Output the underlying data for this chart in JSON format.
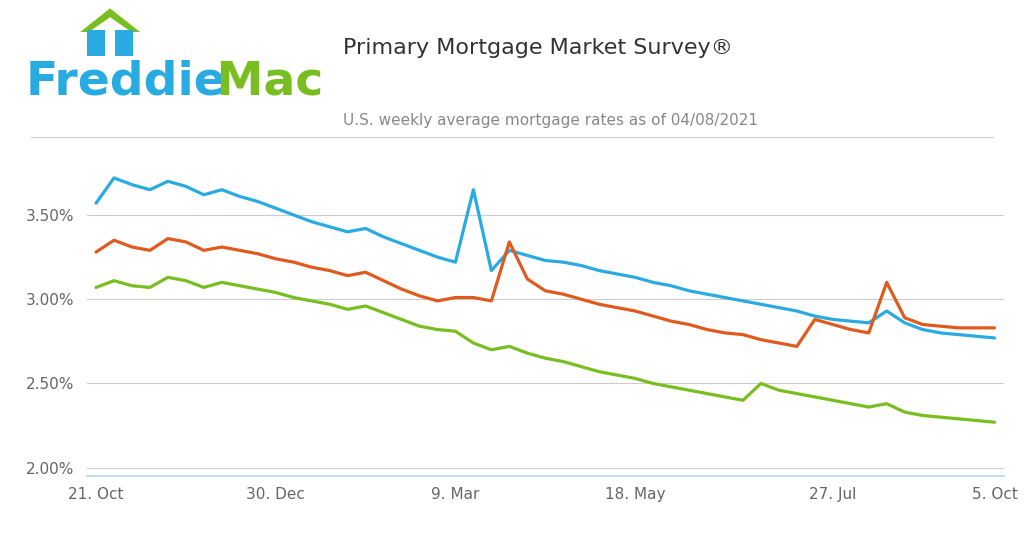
{
  "title": "Primary Mortgage Market Survey®",
  "subtitle": "U.S. weekly average mortgage rates as of 04/08/2021",
  "freddie_blue": "#29ABE2",
  "freddie_green": "#78BE20",
  "line_blue": "#29ABE2",
  "line_orange": "#E05A1E",
  "line_green": "#78BE20",
  "background_color": "#FFFFFF",
  "grid_color": "#CCCCCC",
  "text_color": "#666666",
  "title_color": "#333333",
  "ylim": [
    1.95,
    3.85
  ],
  "yticks": [
    2.0,
    2.5,
    3.0,
    3.5
  ],
  "xtick_labels": [
    "21. Oct",
    "30. Dec",
    "9. Mar",
    "18. May",
    "27. Jul",
    "5. Oct"
  ],
  "xtick_positions": [
    0,
    10,
    20,
    30,
    41,
    50
  ],
  "blue_data": [
    3.57,
    3.72,
    3.68,
    3.65,
    3.7,
    3.67,
    3.62,
    3.65,
    3.61,
    3.58,
    3.54,
    3.5,
    3.46,
    3.43,
    3.4,
    3.42,
    3.37,
    3.33,
    3.29,
    3.25,
    3.22,
    3.65,
    3.17,
    3.29,
    3.26,
    3.23,
    3.22,
    3.2,
    3.17,
    3.15,
    3.13,
    3.1,
    3.08,
    3.05,
    3.03,
    3.01,
    2.99,
    2.97,
    2.95,
    2.93,
    2.9,
    2.88,
    2.87,
    2.86,
    2.93,
    2.86,
    2.82,
    2.8,
    2.79,
    2.78,
    2.77
  ],
  "orange_data": [
    3.28,
    3.35,
    3.31,
    3.29,
    3.36,
    3.34,
    3.29,
    3.31,
    3.29,
    3.27,
    3.24,
    3.22,
    3.19,
    3.17,
    3.14,
    3.16,
    3.11,
    3.06,
    3.02,
    2.99,
    3.01,
    3.01,
    2.99,
    3.34,
    3.12,
    3.05,
    3.03,
    3.0,
    2.97,
    2.95,
    2.93,
    2.9,
    2.87,
    2.85,
    2.82,
    2.8,
    2.79,
    2.76,
    2.74,
    2.72,
    2.88,
    2.85,
    2.82,
    2.8,
    3.1,
    2.89,
    2.85,
    2.84,
    2.83,
    2.83,
    2.83
  ],
  "green_data": [
    3.07,
    3.11,
    3.08,
    3.07,
    3.13,
    3.11,
    3.07,
    3.1,
    3.08,
    3.06,
    3.04,
    3.01,
    2.99,
    2.97,
    2.94,
    2.96,
    2.92,
    2.88,
    2.84,
    2.82,
    2.81,
    2.74,
    2.7,
    2.72,
    2.68,
    2.65,
    2.63,
    2.6,
    2.57,
    2.55,
    2.53,
    2.5,
    2.48,
    2.46,
    2.44,
    2.42,
    2.4,
    2.5,
    2.46,
    2.44,
    2.42,
    2.4,
    2.38,
    2.36,
    2.38,
    2.33,
    2.31,
    2.3,
    2.29,
    2.28,
    2.27
  ]
}
